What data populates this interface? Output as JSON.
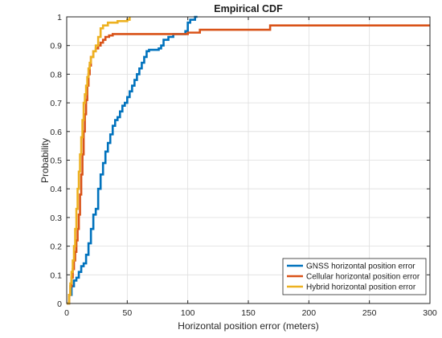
{
  "chart_data": {
    "type": "line",
    "title": "Empirical CDF",
    "xlabel": "Horizontal position error (meters)",
    "ylabel": "Probability",
    "xlim": [
      0,
      300
    ],
    "ylim": [
      0,
      1
    ],
    "xticks": [
      0,
      50,
      100,
      150,
      200,
      250,
      300
    ],
    "yticks": [
      0,
      0.1,
      0.2,
      0.3,
      0.4,
      0.5,
      0.6,
      0.7,
      0.8,
      0.9,
      1
    ],
    "xtick_labels": [
      "0",
      "50",
      "100",
      "150",
      "200",
      "250",
      "300"
    ],
    "ytick_labels": [
      "0",
      "0.1",
      "0.2",
      "0.3",
      "0.4",
      "0.5",
      "0.6",
      "0.7",
      "0.8",
      "0.9",
      "1"
    ],
    "grid": true,
    "legend_position": "bottom-right",
    "series": [
      {
        "name": "GNSS horizontal position error",
        "color": "#0072BD",
        "x": [
          0,
          2,
          4,
          6,
          8,
          10,
          12,
          14,
          16,
          18,
          20,
          22,
          24,
          26,
          28,
          30,
          32,
          34,
          36,
          38,
          40,
          42,
          44,
          46,
          48,
          50,
          52,
          54,
          56,
          58,
          60,
          62,
          64,
          66,
          68,
          70,
          72,
          74,
          76,
          78,
          80,
          84,
          88,
          92,
          96,
          98,
          100,
          102,
          104,
          106,
          108
        ],
        "y": [
          0,
          0.03,
          0.06,
          0.08,
          0.09,
          0.11,
          0.13,
          0.14,
          0.17,
          0.21,
          0.26,
          0.31,
          0.33,
          0.4,
          0.45,
          0.49,
          0.53,
          0.56,
          0.59,
          0.62,
          0.64,
          0.65,
          0.67,
          0.69,
          0.7,
          0.72,
          0.74,
          0.76,
          0.78,
          0.8,
          0.82,
          0.84,
          0.86,
          0.88,
          0.885,
          0.885,
          0.885,
          0.885,
          0.89,
          0.9,
          0.92,
          0.93,
          0.94,
          0.94,
          0.94,
          0.95,
          0.98,
          0.99,
          0.99,
          1.0,
          1.0
        ]
      },
      {
        "name": "Cellular horizontal position error",
        "color": "#D95319",
        "x": [
          0,
          2,
          3,
          4,
          5,
          6,
          7,
          8,
          9,
          10,
          11,
          12,
          13,
          14,
          15,
          16,
          17,
          18,
          19,
          20,
          22,
          24,
          26,
          28,
          30,
          32,
          35,
          38,
          40,
          45,
          50,
          60,
          80,
          100,
          110,
          120,
          140,
          160,
          168,
          200,
          250,
          300
        ],
        "y": [
          0,
          0.03,
          0.06,
          0.09,
          0.12,
          0.15,
          0.18,
          0.22,
          0.26,
          0.31,
          0.38,
          0.45,
          0.52,
          0.6,
          0.66,
          0.71,
          0.76,
          0.8,
          0.83,
          0.86,
          0.88,
          0.89,
          0.9,
          0.91,
          0.92,
          0.93,
          0.935,
          0.94,
          0.94,
          0.94,
          0.94,
          0.94,
          0.94,
          0.945,
          0.955,
          0.955,
          0.955,
          0.955,
          0.97,
          0.97,
          0.97,
          0.97
        ]
      },
      {
        "name": "Hybrid horizontal position error",
        "color": "#EDB120",
        "x": [
          0,
          2,
          3,
          4,
          5,
          6,
          7,
          8,
          9,
          10,
          11,
          12,
          13,
          14,
          15,
          16,
          17,
          18,
          19,
          20,
          22,
          24,
          26,
          28,
          30,
          34,
          38,
          42,
          46,
          50,
          52
        ],
        "y": [
          0,
          0.03,
          0.07,
          0.11,
          0.15,
          0.2,
          0.26,
          0.33,
          0.4,
          0.46,
          0.52,
          0.58,
          0.64,
          0.7,
          0.73,
          0.76,
          0.79,
          0.82,
          0.84,
          0.86,
          0.88,
          0.9,
          0.93,
          0.96,
          0.97,
          0.98,
          0.98,
          0.985,
          0.985,
          0.99,
          1.0
        ]
      }
    ]
  }
}
